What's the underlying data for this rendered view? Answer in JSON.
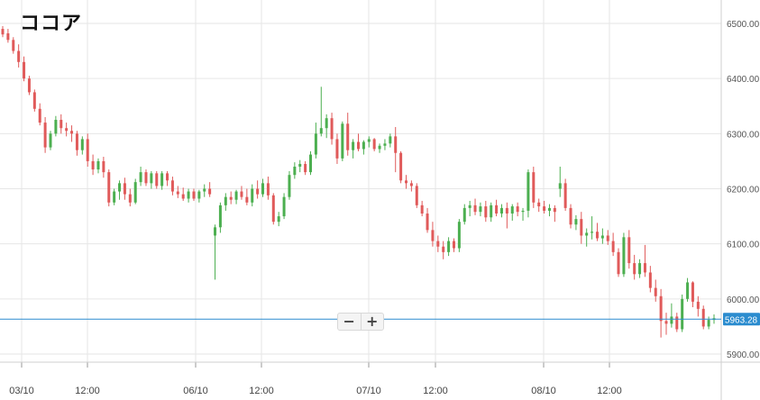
{
  "title": "ココア",
  "zoom": {
    "minus": "−",
    "plus": "+"
  },
  "chart_data": {
    "type": "candlestick",
    "title": "ココア",
    "ylim": [
      5880,
      6520
    ],
    "yticks": [
      5900,
      6000,
      6100,
      6200,
      6300,
      6400,
      6500
    ],
    "ytick_labels": [
      "5900.00",
      "6000.00",
      "6100.00",
      "6200.00",
      "6300.00",
      "6400.00",
      "6500.00"
    ],
    "xtick_labels": [
      "03/10",
      "12:00",
      "06/10",
      "12:00",
      "07/10",
      "12:00",
      "08/10",
      "12:00"
    ],
    "current_price": 5963.28,
    "current_price_label": "5963.28",
    "grid": true,
    "colors": {
      "up": "#4caf50",
      "down": "#e05a5a",
      "price_line": "#2b8ccf",
      "grid": "#e6e6e6"
    },
    "ohlc": [
      [
        6490,
        6495,
        6475,
        6480
      ],
      [
        6482,
        6490,
        6465,
        6470
      ],
      [
        6470,
        6475,
        6445,
        6450
      ],
      [
        6450,
        6462,
        6420,
        6430
      ],
      [
        6430,
        6440,
        6395,
        6400
      ],
      [
        6400,
        6405,
        6370,
        6375
      ],
      [
        6375,
        6380,
        6340,
        6345
      ],
      [
        6345,
        6355,
        6315,
        6320
      ],
      [
        6320,
        6330,
        6265,
        6275
      ],
      [
        6275,
        6305,
        6270,
        6300
      ],
      [
        6300,
        6332,
        6295,
        6325
      ],
      [
        6325,
        6335,
        6300,
        6310
      ],
      [
        6310,
        6320,
        6295,
        6305
      ],
      [
        6305,
        6315,
        6285,
        6300
      ],
      [
        6300,
        6305,
        6260,
        6270
      ],
      [
        6270,
        6295,
        6262,
        6290
      ],
      [
        6290,
        6300,
        6240,
        6250
      ],
      [
        6250,
        6262,
        6225,
        6235
      ],
      [
        6235,
        6255,
        6228,
        6250
      ],
      [
        6250,
        6258,
        6220,
        6230
      ],
      [
        6230,
        6235,
        6168,
        6175
      ],
      [
        6175,
        6200,
        6170,
        6195
      ],
      [
        6195,
        6215,
        6180,
        6210
      ],
      [
        6210,
        6220,
        6180,
        6190
      ],
      [
        6190,
        6200,
        6168,
        6175
      ],
      [
        6175,
        6218,
        6172,
        6212
      ],
      [
        6212,
        6240,
        6205,
        6230
      ],
      [
        6230,
        6235,
        6205,
        6210
      ],
      [
        6210,
        6232,
        6200,
        6228
      ],
      [
        6228,
        6232,
        6200,
        6205
      ],
      [
        6205,
        6232,
        6198,
        6228
      ],
      [
        6228,
        6232,
        6205,
        6215
      ],
      [
        6215,
        6222,
        6188,
        6195
      ],
      [
        6195,
        6205,
        6183,
        6190
      ],
      [
        6190,
        6202,
        6178,
        6182
      ],
      [
        6182,
        6200,
        6175,
        6195
      ],
      [
        6195,
        6200,
        6178,
        6182
      ],
      [
        6182,
        6198,
        6175,
        6195
      ],
      [
        6195,
        6208,
        6185,
        6200
      ],
      [
        6200,
        6212,
        6185,
        6190
      ],
      [
        6115,
        6135,
        6035,
        6130
      ],
      [
        6130,
        6175,
        6120,
        6170
      ],
      [
        6170,
        6192,
        6160,
        6185
      ],
      [
        6185,
        6195,
        6172,
        6180
      ],
      [
        6180,
        6198,
        6172,
        6195
      ],
      [
        6195,
        6205,
        6180,
        6185
      ],
      [
        6185,
        6200,
        6170,
        6175
      ],
      [
        6175,
        6208,
        6168,
        6200
      ],
      [
        6200,
        6215,
        6182,
        6190
      ],
      [
        6190,
        6218,
        6185,
        6210
      ],
      [
        6210,
        6222,
        6180,
        6188
      ],
      [
        6188,
        6192,
        6135,
        6140
      ],
      [
        6140,
        6158,
        6132,
        6150
      ],
      [
        6150,
        6192,
        6145,
        6185
      ],
      [
        6185,
        6232,
        6180,
        6225
      ],
      [
        6225,
        6248,
        6218,
        6240
      ],
      [
        6240,
        6252,
        6230,
        6245
      ],
      [
        6245,
        6250,
        6225,
        6230
      ],
      [
        6230,
        6268,
        6225,
        6262
      ],
      [
        6262,
        6320,
        6255,
        6300
      ],
      [
        6300,
        6385,
        6295,
        6310
      ],
      [
        6310,
        6335,
        6292,
        6328
      ],
      [
        6328,
        6338,
        6280,
        6290
      ],
      [
        6290,
        6300,
        6245,
        6255
      ],
      [
        6255,
        6322,
        6250,
        6318
      ],
      [
        6318,
        6338,
        6260,
        6270
      ],
      [
        6270,
        6290,
        6255,
        6285
      ],
      [
        6285,
        6300,
        6268,
        6272
      ],
      [
        6272,
        6288,
        6262,
        6285
      ],
      [
        6285,
        6295,
        6275,
        6290
      ],
      [
        6290,
        6292,
        6268,
        6272
      ],
      [
        6272,
        6282,
        6265,
        6278
      ],
      [
        6278,
        6290,
        6270,
        6282
      ],
      [
        6282,
        6300,
        6275,
        6295
      ],
      [
        6295,
        6312,
        6230,
        6265
      ],
      [
        6265,
        6268,
        6210,
        6215
      ],
      [
        6215,
        6225,
        6200,
        6210
      ],
      [
        6210,
        6215,
        6195,
        6205
      ],
      [
        6205,
        6210,
        6165,
        6170
      ],
      [
        6170,
        6178,
        6150,
        6155
      ],
      [
        6155,
        6165,
        6120,
        6125
      ],
      [
        6125,
        6140,
        6095,
        6105
      ],
      [
        6105,
        6115,
        6085,
        6095
      ],
      [
        6095,
        6105,
        6072,
        6085
      ],
      [
        6085,
        6112,
        6078,
        6105
      ],
      [
        6105,
        6110,
        6085,
        6092
      ],
      [
        6092,
        6145,
        6085,
        6140
      ],
      [
        6140,
        6172,
        6135,
        6165
      ],
      [
        6165,
        6178,
        6150,
        6170
      ],
      [
        6170,
        6182,
        6152,
        6158
      ],
      [
        6158,
        6175,
        6150,
        6168
      ],
      [
        6168,
        6178,
        6140,
        6148
      ],
      [
        6148,
        6175,
        6140,
        6170
      ],
      [
        6170,
        6180,
        6150,
        6155
      ],
      [
        6155,
        6172,
        6148,
        6165
      ],
      [
        6165,
        6175,
        6128,
        6155
      ],
      [
        6155,
        6172,
        6142,
        6168
      ],
      [
        6168,
        6175,
        6150,
        6158
      ],
      [
        6158,
        6165,
        6142,
        6160
      ],
      [
        6160,
        6235,
        6148,
        6230
      ],
      [
        6230,
        6240,
        6165,
        6175
      ],
      [
        6175,
        6182,
        6158,
        6168
      ],
      [
        6168,
        6178,
        6155,
        6160
      ],
      [
        6160,
        6172,
        6150,
        6165
      ],
      [
        6165,
        6170,
        6140,
        6158
      ],
      [
        6200,
        6240,
        6185,
        6210
      ],
      [
        6210,
        6218,
        6160,
        6165
      ],
      [
        6165,
        6172,
        6128,
        6135
      ],
      [
        6135,
        6152,
        6125,
        6145
      ],
      [
        6145,
        6158,
        6100,
        6115
      ],
      [
        6115,
        6128,
        6095,
        6120
      ],
      [
        6120,
        6150,
        6108,
        6122
      ],
      [
        6122,
        6138,
        6105,
        6110
      ],
      [
        6110,
        6128,
        6100,
        6115
      ],
      [
        6115,
        6125,
        6098,
        6105
      ],
      [
        6105,
        6120,
        6078,
        6085
      ],
      [
        6085,
        6092,
        6040,
        6045
      ],
      [
        6045,
        6120,
        6040,
        6112
      ],
      [
        6112,
        6125,
        6055,
        6065
      ],
      [
        6065,
        6080,
        6035,
        6045
      ],
      [
        6045,
        6072,
        6038,
        6065
      ],
      [
        6065,
        6098,
        6040,
        6048
      ],
      [
        6048,
        6060,
        6012,
        6020
      ],
      [
        6020,
        6035,
        5995,
        6005
      ],
      [
        6005,
        6018,
        5930,
        5960
      ],
      [
        5960,
        5975,
        5935,
        5955
      ],
      [
        5955,
        5992,
        5948,
        5968
      ],
      [
        5968,
        5975,
        5940,
        5945
      ],
      [
        5945,
        6008,
        5940,
        6000
      ],
      [
        6000,
        6038,
        5995,
        6030
      ],
      [
        6030,
        6032,
        5985,
        5995
      ],
      [
        5995,
        6005,
        5968,
        5982
      ],
      [
        5982,
        5988,
        5945,
        5950
      ],
      [
        5950,
        5968,
        5945,
        5962
      ],
      [
        5962,
        5972,
        5955,
        5965
      ]
    ]
  }
}
